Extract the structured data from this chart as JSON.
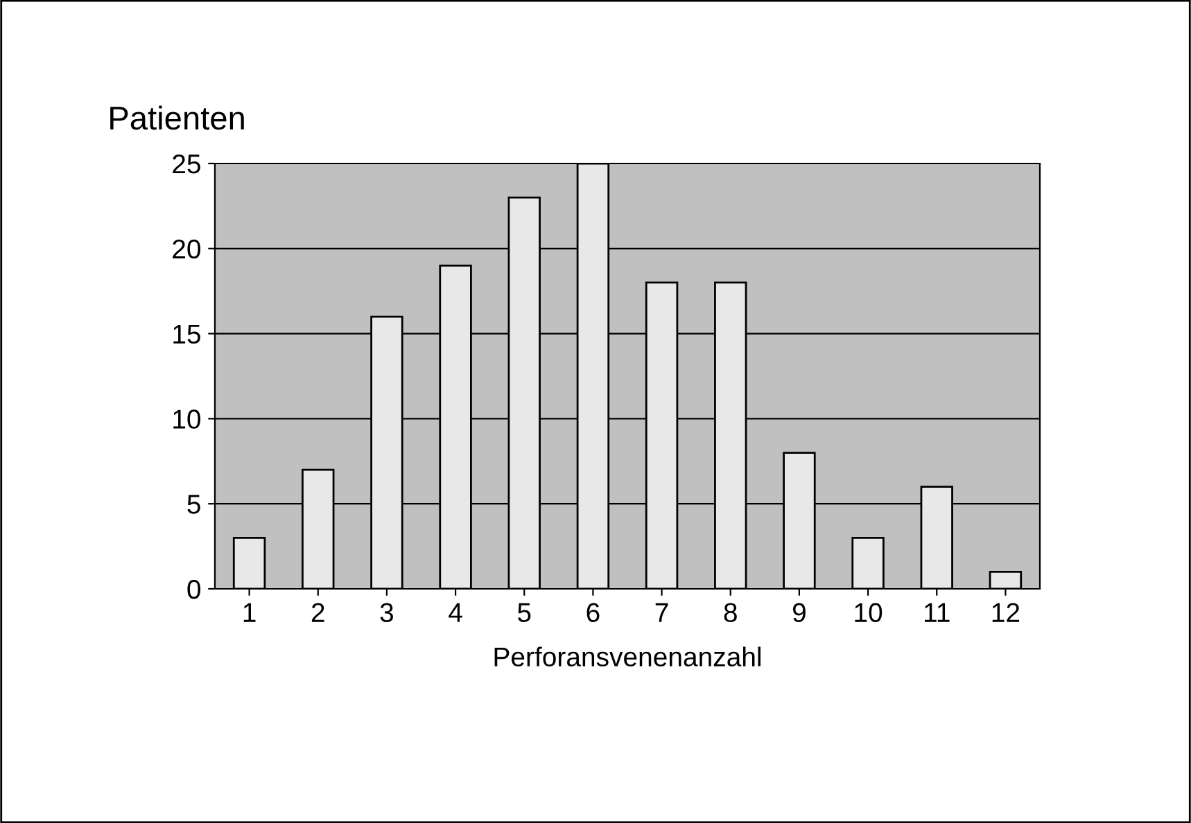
{
  "chart_data": {
    "type": "bar",
    "ylabel": "Patienten",
    "xlabel": "Perforansvenenanzahl",
    "categories": [
      "1",
      "2",
      "3",
      "4",
      "5",
      "6",
      "7",
      "8",
      "9",
      "10",
      "11",
      "12"
    ],
    "values": [
      3,
      7,
      16,
      19,
      23,
      25,
      18,
      18,
      8,
      3,
      6,
      1
    ],
    "color": "#e8e8e8",
    "ylim": [
      0,
      25
    ],
    "yticks": [
      0,
      5,
      10,
      15,
      20,
      25
    ],
    "grid": "y"
  }
}
